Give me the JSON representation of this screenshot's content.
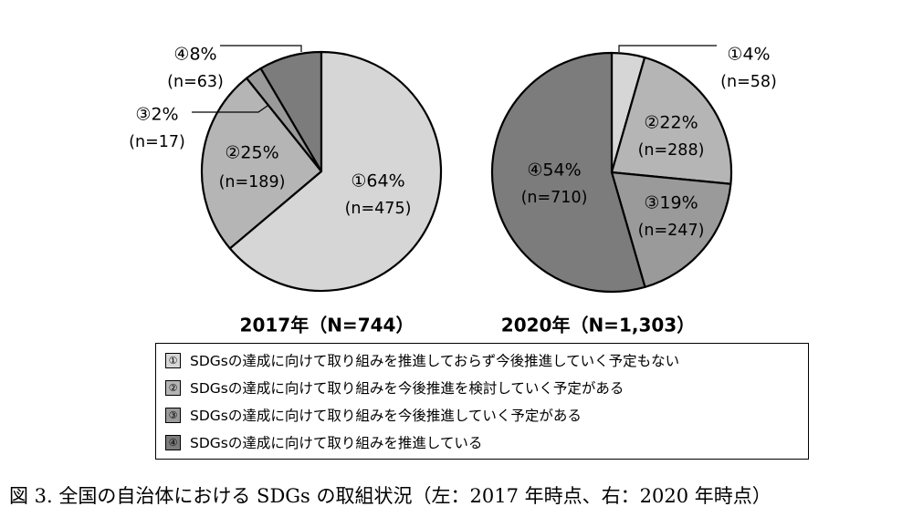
{
  "chart_data": [
    {
      "type": "pie",
      "title": "2017年（N=744）",
      "start": "12 o'clock",
      "direction": "counter-clockwise",
      "slices": [
        {
          "id": "4",
          "marker": "④",
          "percent_label": "④8%",
          "n_label": "(n=63)",
          "value": 63,
          "color": "#7c7c7c"
        },
        {
          "id": "3",
          "marker": "③",
          "percent_label": "③2%",
          "n_label": "(n=17)",
          "value": 17,
          "color": "#9a9a9a"
        },
        {
          "id": "2",
          "marker": "②",
          "percent_label": "②25%",
          "n_label": "(n=189)",
          "value": 189,
          "color": "#b5b5b5"
        },
        {
          "id": "1",
          "marker": "①",
          "percent_label": "①64%",
          "n_label": "(n=475)",
          "value": 475,
          "color": "#d6d6d6"
        }
      ]
    },
    {
      "type": "pie",
      "title": "2020年（N=1,303）",
      "start": "12 o'clock",
      "direction": "clockwise",
      "slices": [
        {
          "id": "1",
          "marker": "①",
          "percent_label": "①4%",
          "n_label": "(n=58)",
          "value": 58,
          "color": "#d6d6d6"
        },
        {
          "id": "2",
          "marker": "②",
          "percent_label": "②22%",
          "n_label": "(n=288)",
          "value": 288,
          "color": "#b5b5b5"
        },
        {
          "id": "3",
          "marker": "③",
          "percent_label": "③19%",
          "n_label": "(n=247)",
          "value": 247,
          "color": "#9a9a9a"
        },
        {
          "id": "4",
          "marker": "④",
          "percent_label": "④54%",
          "n_label": "(n=710)",
          "value": 710,
          "color": "#7c7c7c"
        }
      ]
    }
  ],
  "legend": [
    {
      "marker": "①",
      "text": "SDGsの達成に向けて取り組みを推進しておらず今後推進していく予定もない",
      "color": "#d6d6d6"
    },
    {
      "marker": "②",
      "text": "SDGsの達成に向けて取り組みを今後推進を検討していく予定がある",
      "color": "#b5b5b5"
    },
    {
      "marker": "③",
      "text": "SDGsの達成に向けて取り組みを今後推進していく予定がある",
      "color": "#9a9a9a"
    },
    {
      "marker": "④",
      "text": "SDGsの達成に向けて取り組みを推進している",
      "color": "#7c7c7c"
    }
  ],
  "caption": "図 3. 全国の自治体における SDGs の取組状況（左：2017 年時点、右：2020 年時点）"
}
